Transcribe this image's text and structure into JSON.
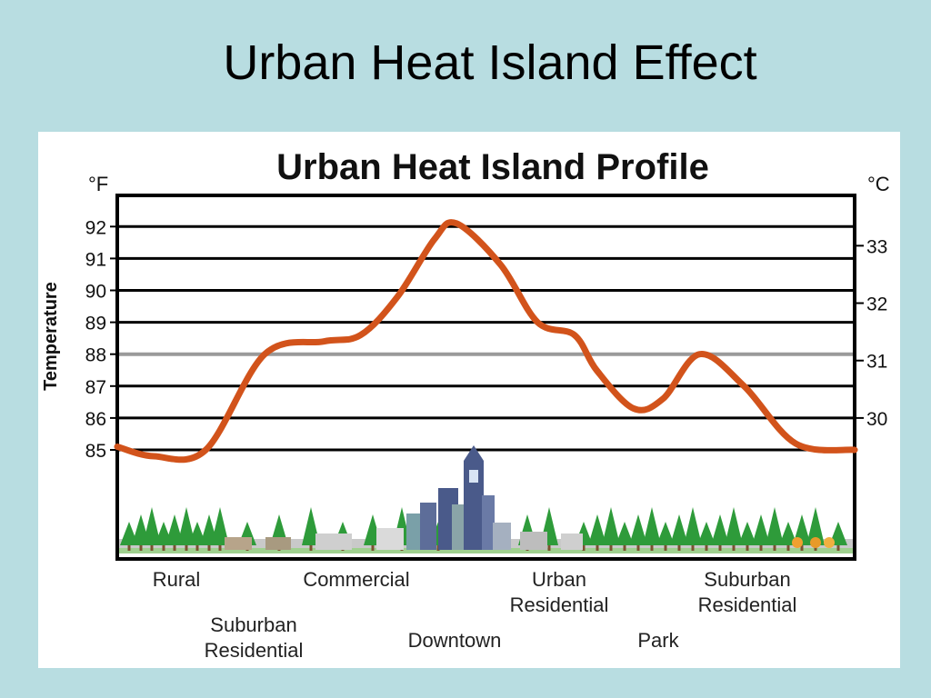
{
  "slide": {
    "title": "Urban Heat Island Effect"
  },
  "chart_data": {
    "type": "line",
    "title": "Urban Heat Island Profile",
    "ylabel": "Temperature",
    "y_unit_left": "°F",
    "y_unit_right": "°C",
    "ylim": [
      85,
      92
    ],
    "yticks_left": [
      92,
      91,
      90,
      89,
      88,
      87,
      86,
      85
    ],
    "yticks_right": [
      33,
      32,
      31,
      30
    ],
    "x": [
      0,
      5,
      12,
      20,
      28,
      33,
      38,
      43,
      46,
      52,
      57,
      62,
      65,
      70,
      74,
      79,
      85,
      92,
      100
    ],
    "values": [
      85.1,
      84.8,
      85.0,
      88.0,
      88.4,
      88.6,
      89.8,
      91.6,
      92.1,
      90.8,
      89.0,
      88.6,
      87.5,
      86.3,
      86.6,
      88.0,
      87.0,
      85.2,
      85.0
    ],
    "zones": [
      {
        "label": "Rural",
        "row": 1
      },
      {
        "label": "Suburban Residential",
        "row": 2
      },
      {
        "label": "Commercial",
        "row": 1
      },
      {
        "label": "Downtown",
        "row": 2
      },
      {
        "label": "Urban Residential",
        "row": 1
      },
      {
        "label": "Park",
        "row": 2
      },
      {
        "label": "Suburban Residential",
        "row": 1
      }
    ],
    "colors": {
      "line": "#d2531b",
      "grid": "#000000",
      "highlight_gridline": "#9a9a9a",
      "tree": "#2e9b3a",
      "building": "#4a5a8a"
    }
  }
}
